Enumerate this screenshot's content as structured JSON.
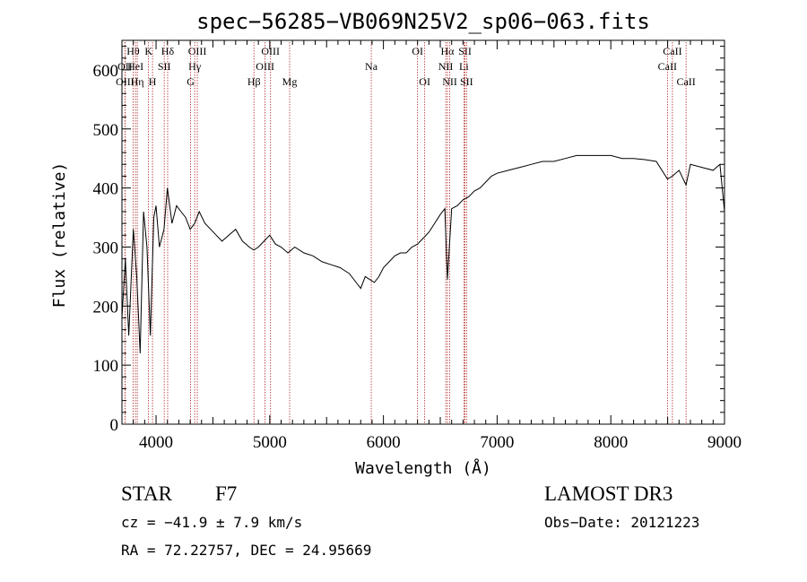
{
  "chart_data": {
    "type": "line",
    "title": "spec−56285−VB069N25V2_sp06−063.fits",
    "xlabel": "Wavelength (Å)",
    "ylabel": "Flux (relative)",
    "xlim": [
      3700,
      9000
    ],
    "ylim": [
      0,
      650
    ],
    "x_ticks": [
      4000,
      5000,
      6000,
      7000,
      8000,
      9000
    ],
    "y_ticks": [
      0,
      100,
      200,
      300,
      400,
      500,
      600
    ],
    "line_color": "#000000",
    "marker_color": "#b22222",
    "grid": false,
    "series": [
      {
        "x": [
          3700,
          3730,
          3760,
          3800,
          3830,
          3860,
          3890,
          3920,
          3950,
          3980,
          4000,
          4030,
          4070,
          4100,
          4140,
          4180,
          4220,
          4260,
          4300,
          4340,
          4380,
          4430,
          4480,
          4530,
          4580,
          4640,
          4700,
          4760,
          4820,
          4860,
          4900,
          4950,
          5000,
          5050,
          5100,
          5160,
          5220,
          5300,
          5380,
          5460,
          5540,
          5620,
          5700,
          5760,
          5800,
          5840,
          5880,
          5920,
          5960,
          6000,
          6050,
          6100,
          6150,
          6200,
          6250,
          6300,
          6350,
          6400,
          6450,
          6500,
          6540,
          6563,
          6600,
          6650,
          6700,
          6750,
          6800,
          6850,
          6900,
          6950,
          7000,
          7100,
          7200,
          7300,
          7400,
          7500,
          7600,
          7700,
          7800,
          7900,
          8000,
          8100,
          8200,
          8300,
          8400,
          8498,
          8542,
          8600,
          8662,
          8700,
          8800,
          8900,
          8960,
          9000
        ],
        "y": [
          180,
          280,
          150,
          330,
          250,
          120,
          360,
          300,
          150,
          350,
          370,
          300,
          330,
          400,
          340,
          370,
          360,
          350,
          330,
          340,
          360,
          340,
          330,
          320,
          310,
          320,
          330,
          310,
          300,
          295,
          300,
          310,
          320,
          305,
          300,
          290,
          300,
          290,
          285,
          275,
          270,
          265,
          255,
          240,
          230,
          250,
          245,
          240,
          250,
          265,
          275,
          285,
          290,
          290,
          300,
          305,
          315,
          325,
          340,
          355,
          365,
          245,
          365,
          370,
          380,
          385,
          395,
          400,
          410,
          420,
          425,
          430,
          435,
          440,
          445,
          445,
          450,
          455,
          455,
          455,
          455,
          450,
          450,
          448,
          445,
          415,
          420,
          430,
          405,
          440,
          435,
          430,
          440,
          360
        ]
      }
    ],
    "spectral_lines": [
      {
        "label": "Hθ",
        "x": 3798,
        "row": 0
      },
      {
        "label": "OII",
        "x": 3727,
        "row": 1
      },
      {
        "label": "OIII",
        "x": 3727,
        "row": 2
      },
      {
        "label": "K",
        "x": 3934,
        "row": 0
      },
      {
        "label": "HeI",
        "x": 3819,
        "row": 1
      },
      {
        "label": "Hη",
        "x": 3835,
        "row": 2
      },
      {
        "label": "Hδ",
        "x": 4102,
        "row": 0
      },
      {
        "label": "SII",
        "x": 4072,
        "row": 1
      },
      {
        "label": "H",
        "x": 3969,
        "row": 2
      },
      {
        "label": "OIII",
        "x": 4363,
        "row": 0
      },
      {
        "label": "Hγ",
        "x": 4340,
        "row": 1
      },
      {
        "label": "G",
        "x": 4304,
        "row": 2
      },
      {
        "label": "OIII",
        "x": 5007,
        "row": 0
      },
      {
        "label": "OIII",
        "x": 4959,
        "row": 1
      },
      {
        "label": "Hβ",
        "x": 4861,
        "row": 2
      },
      {
        "label": "Mg",
        "x": 5175,
        "row": 2
      },
      {
        "label": "Na",
        "x": 5893,
        "row": 1
      },
      {
        "label": "OI",
        "x": 6300,
        "row": 0
      },
      {
        "label": "OI",
        "x": 6363,
        "row": 2
      },
      {
        "label": "Hα",
        "x": 6563,
        "row": 0
      },
      {
        "label": "NII",
        "x": 6548,
        "row": 1
      },
      {
        "label": "NII",
        "x": 6583,
        "row": 2
      },
      {
        "label": "SII",
        "x": 6717,
        "row": 0
      },
      {
        "label": "Li",
        "x": 6708,
        "row": 1
      },
      {
        "label": "SII",
        "x": 6731,
        "row": 2
      },
      {
        "label": "CaII",
        "x": 8542,
        "row": 0
      },
      {
        "label": "CaII",
        "x": 8498,
        "row": 1
      },
      {
        "label": "CaII",
        "x": 8662,
        "row": 2
      }
    ]
  },
  "info": {
    "object_class": "STAR",
    "subclass": "F7",
    "survey": "LAMOST DR3",
    "redshift": "cz = −41.9 ± 7.9 km/s",
    "obs_date": "Obs−Date: 20121223",
    "coordinates": "RA =  72.22757, DEC =  24.95669"
  }
}
